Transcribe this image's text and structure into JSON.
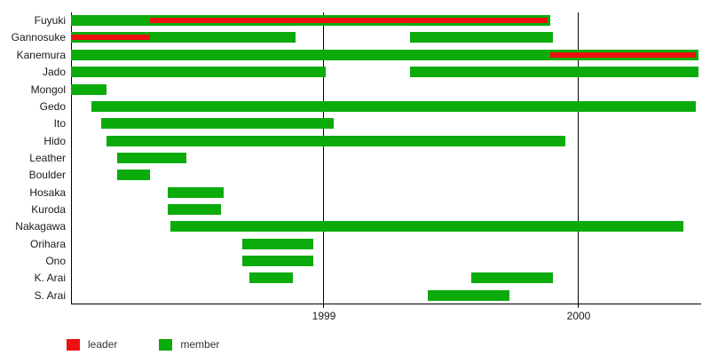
{
  "chart_data": {
    "type": "bar",
    "subtype": "timeline-gantt",
    "title": "",
    "xlabel": "",
    "ylabel": "",
    "grid": "vertical-year-lines",
    "legend_position": "bottom-left",
    "axis": {
      "range": [
        1998.01,
        2000.48
      ],
      "tick_values": [
        1999,
        2000
      ],
      "tick_labels": [
        "1999",
        "2000"
      ]
    },
    "rows": [
      {
        "name": "Fuyuki",
        "bars": [
          {
            "role": "member",
            "start": 1998.01,
            "end": 1999.89
          },
          {
            "role": "leader",
            "start": 1998.32,
            "end": 1999.88
          }
        ]
      },
      {
        "name": "Gannosuke",
        "bars": [
          {
            "role": "member",
            "start": 1998.01,
            "end": 1998.89
          },
          {
            "role": "leader",
            "start": 1998.01,
            "end": 1998.32
          },
          {
            "role": "member",
            "start": 1999.34,
            "end": 1999.9
          }
        ]
      },
      {
        "name": "Kanemura",
        "bars": [
          {
            "role": "member",
            "start": 1998.01,
            "end": 2000.47
          },
          {
            "role": "leader",
            "start": 1999.89,
            "end": 2000.46
          }
        ]
      },
      {
        "name": "Jado",
        "bars": [
          {
            "role": "member",
            "start": 1998.01,
            "end": 1999.01
          },
          {
            "role": "member",
            "start": 1999.34,
            "end": 2000.47
          }
        ]
      },
      {
        "name": "Mongol",
        "bars": [
          {
            "role": "member",
            "start": 1998.01,
            "end": 1998.15
          }
        ]
      },
      {
        "name": "Gedo",
        "bars": [
          {
            "role": "member",
            "start": 1998.09,
            "end": 2000.46
          }
        ]
      },
      {
        "name": "Ito",
        "bars": [
          {
            "role": "member",
            "start": 1998.13,
            "end": 1999.04
          }
        ]
      },
      {
        "name": "Hido",
        "bars": [
          {
            "role": "member",
            "start": 1998.15,
            "end": 1999.95
          }
        ]
      },
      {
        "name": "Leather",
        "bars": [
          {
            "role": "member",
            "start": 1998.19,
            "end": 1998.46
          }
        ]
      },
      {
        "name": "Boulder",
        "bars": [
          {
            "role": "member",
            "start": 1998.19,
            "end": 1998.32
          }
        ]
      },
      {
        "name": "Hosaka",
        "bars": [
          {
            "role": "member",
            "start": 1998.39,
            "end": 1998.61
          }
        ]
      },
      {
        "name": "Kuroda",
        "bars": [
          {
            "role": "member",
            "start": 1998.39,
            "end": 1998.6
          }
        ]
      },
      {
        "name": "Nakagawa",
        "bars": [
          {
            "role": "member",
            "start": 1998.4,
            "end": 2000.41
          }
        ]
      },
      {
        "name": "Orihara",
        "bars": [
          {
            "role": "member",
            "start": 1998.68,
            "end": 1998.96
          }
        ]
      },
      {
        "name": "Ono",
        "bars": [
          {
            "role": "member",
            "start": 1998.68,
            "end": 1998.96
          }
        ]
      },
      {
        "name": "K. Arai",
        "bars": [
          {
            "role": "member",
            "start": 1998.71,
            "end": 1998.88
          },
          {
            "role": "member",
            "start": 1999.58,
            "end": 1999.9
          }
        ]
      },
      {
        "name": "S. Arai",
        "bars": [
          {
            "role": "member",
            "start": 1999.41,
            "end": 1999.73
          }
        ]
      }
    ],
    "colors": {
      "member": "#0cab0c",
      "leader": "#ee1111",
      "axis": "#000000",
      "text": "#1a1a1a"
    }
  },
  "legend": [
    {
      "label": "leader",
      "color": "#ee1111"
    },
    {
      "label": "member",
      "color": "#0cab0c"
    }
  ]
}
